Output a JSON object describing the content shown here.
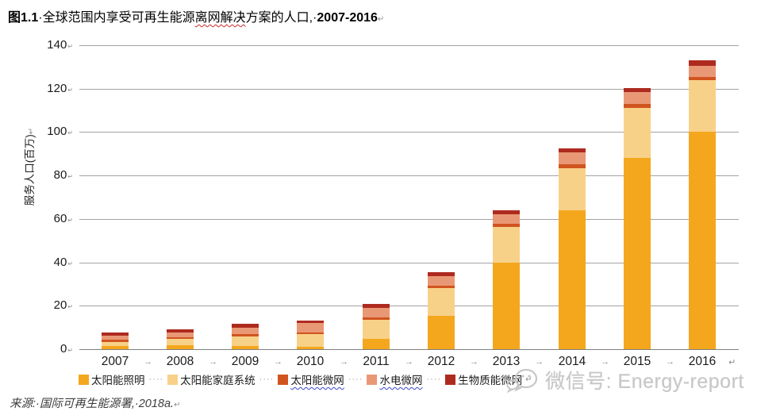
{
  "title": {
    "figure_label": "图1.1",
    "part1": "·全球范围内享受可再生能源",
    "wavy_part": "离网解决",
    "part2": "方案的人口,·",
    "years": "2007-2016",
    "end_mark": "↵"
  },
  "y_axis": {
    "title": "服务人口(百万)",
    "title_mark": "↵",
    "ticks": [
      0,
      20,
      40,
      60,
      80,
      100,
      120,
      140
    ],
    "tick_mark": "↵"
  },
  "x_axis": {
    "separator_mark": "→",
    "end_mark": "↵"
  },
  "legend": {
    "leader_dots": "····",
    "end_mark": "↵"
  },
  "chart_data": {
    "type": "bar",
    "stacked": true,
    "title": "图1.1 全球范围内享受可再生能源离网解决方案的人口, 2007-2016",
    "xlabel": "",
    "ylabel": "服务人口(百万)",
    "ylim": [
      0,
      140
    ],
    "y_step": 20,
    "grid": true,
    "legend_position": "bottom",
    "categories": [
      "2007",
      "2008",
      "2009",
      "2010",
      "2011",
      "2012",
      "2013",
      "2014",
      "2015",
      "2016"
    ],
    "series": [
      {
        "name": "太阳能照明",
        "color": "#F4A71D",
        "wavy_underline": false,
        "values": [
          1.4,
          1.8,
          1.5,
          1.2,
          4.7,
          15.3,
          40,
          64,
          88,
          100
        ]
      },
      {
        "name": "太阳能家庭系统",
        "color": "#F8D189",
        "wavy_underline": false,
        "values": [
          1.8,
          2.9,
          4.4,
          5.8,
          9,
          12.7,
          16.4,
          19.5,
          23.3,
          24
        ]
      },
      {
        "name": "太阳能微网",
        "color": "#D1541F",
        "wavy_underline": true,
        "values": [
          1.1,
          0.7,
          1.0,
          0.8,
          1.0,
          1.2,
          1.2,
          1.8,
          1.8,
          1.5
        ]
      },
      {
        "name": "水电微网",
        "color": "#E99875",
        "wavy_underline": true,
        "values": [
          1.8,
          2.2,
          2.9,
          4.2,
          4.4,
          4.6,
          4.7,
          5.5,
          5.5,
          5.1
        ]
      },
      {
        "name": "生物质能微网",
        "color": "#AE2A1F",
        "wavy_underline": false,
        "values": [
          1.5,
          1.5,
          1.8,
          1.2,
          1.8,
          1.5,
          1.6,
          1.5,
          1.5,
          2.6
        ]
      }
    ],
    "totals": [
      7.6,
      9.1,
      11.6,
      13.2,
      20.9,
      35.3,
      63.9,
      92.3,
      120.1,
      133.2
    ]
  },
  "colors": {
    "gridline": "#a3a3a3",
    "axis_line": "#7f7f7f",
    "format_marks": "#8a8a8a",
    "watermark": "#c7c7c7"
  },
  "source": {
    "text": "来源:·国际可再生能源署,·2018a.",
    "end_mark": "↵"
  },
  "watermark": {
    "icon": "wechat-icon",
    "text": "微信号: Energy-report",
    "pilcrow": "↵"
  }
}
